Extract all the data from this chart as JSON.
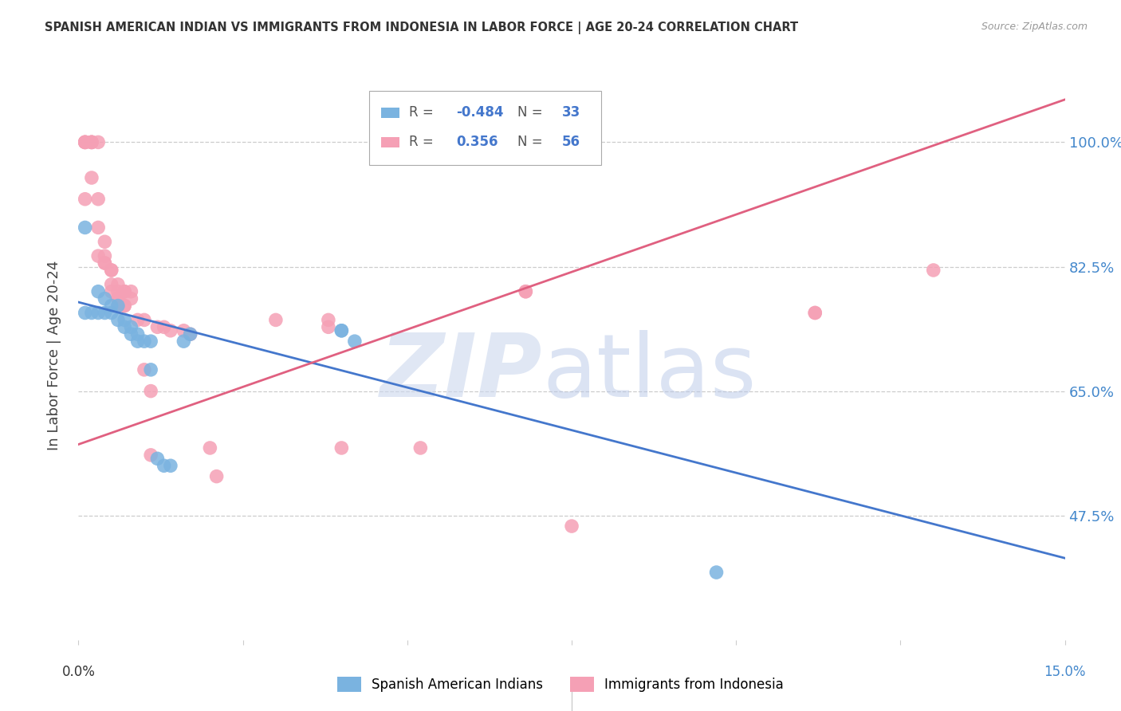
{
  "title": "SPANISH AMERICAN INDIAN VS IMMIGRANTS FROM INDONESIA IN LABOR FORCE | AGE 20-24 CORRELATION CHART",
  "source": "Source: ZipAtlas.com",
  "ylabel": "In Labor Force | Age 20-24",
  "y_ticks": [
    0.475,
    0.65,
    0.825,
    1.0
  ],
  "y_tick_labels": [
    "47.5%",
    "65.0%",
    "82.5%",
    "100.0%"
  ],
  "x_range": [
    0.0,
    0.15
  ],
  "y_range": [
    0.3,
    1.1
  ],
  "blue_R": "-0.484",
  "blue_N": "33",
  "pink_R": "0.356",
  "pink_N": "56",
  "blue_color": "#7ab3e0",
  "pink_color": "#f5a0b5",
  "blue_line_color": "#4477cc",
  "pink_line_color": "#e06080",
  "legend_label_blue": "Spanish American Indians",
  "legend_label_pink": "Immigrants from Indonesia",
  "blue_line_x0": 0.0,
  "blue_line_y0": 0.775,
  "blue_line_x1": 0.15,
  "blue_line_y1": 0.415,
  "pink_line_x0": 0.0,
  "pink_line_y0": 0.575,
  "pink_line_x1": 0.15,
  "pink_line_y1": 1.06,
  "blue_points_x": [
    0.001,
    0.001,
    0.002,
    0.003,
    0.003,
    0.004,
    0.004,
    0.005,
    0.005,
    0.006,
    0.006,
    0.007,
    0.007,
    0.008,
    0.008,
    0.009,
    0.009,
    0.01,
    0.011,
    0.011,
    0.012,
    0.013,
    0.014,
    0.016,
    0.017,
    0.04,
    0.04,
    0.042,
    0.097
  ],
  "blue_points_y": [
    0.76,
    0.88,
    0.76,
    0.76,
    0.79,
    0.76,
    0.78,
    0.77,
    0.76,
    0.77,
    0.75,
    0.75,
    0.74,
    0.74,
    0.73,
    0.72,
    0.73,
    0.72,
    0.72,
    0.68,
    0.555,
    0.545,
    0.545,
    0.72,
    0.73,
    0.735,
    0.735,
    0.72,
    0.395
  ],
  "pink_points_x": [
    0.001,
    0.001,
    0.001,
    0.001,
    0.001,
    0.002,
    0.002,
    0.002,
    0.002,
    0.002,
    0.003,
    0.003,
    0.003,
    0.003,
    0.004,
    0.004,
    0.004,
    0.004,
    0.005,
    0.005,
    0.005,
    0.005,
    0.006,
    0.006,
    0.006,
    0.006,
    0.006,
    0.007,
    0.007,
    0.007,
    0.007,
    0.008,
    0.008,
    0.009,
    0.01,
    0.01,
    0.011,
    0.011,
    0.012,
    0.013,
    0.014,
    0.016,
    0.017,
    0.02,
    0.021,
    0.03,
    0.038,
    0.038,
    0.04,
    0.052,
    0.068,
    0.068,
    0.075,
    0.112,
    0.112,
    0.13
  ],
  "pink_points_y": [
    1.0,
    1.0,
    1.0,
    1.0,
    0.92,
    1.0,
    1.0,
    1.0,
    1.0,
    0.95,
    1.0,
    0.92,
    0.88,
    0.84,
    0.86,
    0.84,
    0.83,
    0.83,
    0.82,
    0.82,
    0.8,
    0.79,
    0.8,
    0.79,
    0.78,
    0.78,
    0.77,
    0.79,
    0.79,
    0.77,
    0.77,
    0.79,
    0.78,
    0.75,
    0.75,
    0.68,
    0.65,
    0.56,
    0.74,
    0.74,
    0.735,
    0.735,
    0.73,
    0.57,
    0.53,
    0.75,
    0.75,
    0.74,
    0.57,
    0.57,
    0.79,
    0.79,
    0.46,
    0.76,
    0.76,
    0.82
  ]
}
